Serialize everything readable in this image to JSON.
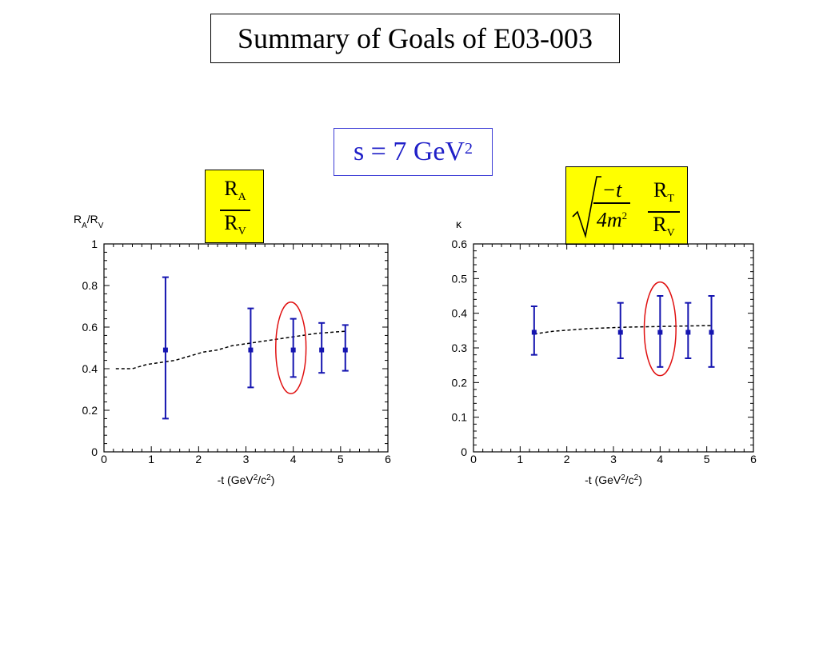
{
  "title": "Summary of Goals of E03-003",
  "kinematics": {
    "label": "s = 7 GeV",
    "exponent": "2"
  },
  "left_box": {
    "num": "R",
    "num_sub": "A",
    "den": "R",
    "den_sub": "V"
  },
  "right_box": {
    "sqrt_num": "−t",
    "sqrt_den": "4m",
    "sqrt_den_exp": "2",
    "num": "R",
    "num_sub": "T",
    "den": "R",
    "den_sub": "V"
  },
  "colors": {
    "points": "#1515b0",
    "curve": "#000000",
    "highlight": "#e01010",
    "box": "#ffff00",
    "s_text": "#2020c8"
  },
  "chart_data": [
    {
      "type": "scatter",
      "ylabel": "R_A/R_V",
      "xlabel": "-t (GeV^2/c^2)",
      "xlim": [
        0,
        6
      ],
      "ylim": [
        0,
        1
      ],
      "xticks": [
        "0",
        "1",
        "2",
        "3",
        "4",
        "5",
        "6"
      ],
      "yticks": [
        "0",
        "0.2",
        "0.4",
        "0.6",
        "0.8",
        "1"
      ],
      "points": [
        {
          "x": 1.3,
          "y": 0.49,
          "err_lo": 0.16,
          "err_hi": 0.84
        },
        {
          "x": 3.1,
          "y": 0.49,
          "err_lo": 0.31,
          "err_hi": 0.69
        },
        {
          "x": 4.0,
          "y": 0.49,
          "err_lo": 0.36,
          "err_hi": 0.64
        },
        {
          "x": 4.6,
          "y": 0.49,
          "err_lo": 0.38,
          "err_hi": 0.62
        },
        {
          "x": 5.1,
          "y": 0.49,
          "err_lo": 0.39,
          "err_hi": 0.61
        }
      ],
      "curve": {
        "x": [
          0.25,
          0.6,
          0.9,
          1.2,
          1.5,
          1.8,
          2.1,
          2.4,
          2.7,
          3.0,
          3.3,
          3.6,
          3.9,
          4.2,
          4.5,
          4.8,
          5.1
        ],
        "y": [
          0.4,
          0.4,
          0.42,
          0.43,
          0.44,
          0.46,
          0.48,
          0.49,
          0.51,
          0.52,
          0.53,
          0.54,
          0.55,
          0.56,
          0.57,
          0.575,
          0.58
        ]
      },
      "highlight": {
        "x": 3.95,
        "y": 0.5,
        "rx": 0.32,
        "ry": 0.22
      }
    },
    {
      "type": "scatter",
      "ylabel": "κ",
      "xlabel": "-t (GeV^2/c^2)",
      "xlim": [
        0,
        6
      ],
      "ylim": [
        0,
        0.6
      ],
      "xticks": [
        "0",
        "1",
        "2",
        "3",
        "4",
        "5",
        "6"
      ],
      "yticks": [
        "0",
        "0.1",
        "0.2",
        "0.3",
        "0.4",
        "0.5",
        "0.6"
      ],
      "points": [
        {
          "x": 1.3,
          "y": 0.345,
          "err_lo": 0.28,
          "err_hi": 0.42
        },
        {
          "x": 3.15,
          "y": 0.345,
          "err_lo": 0.27,
          "err_hi": 0.43
        },
        {
          "x": 4.0,
          "y": 0.345,
          "err_lo": 0.245,
          "err_hi": 0.45
        },
        {
          "x": 4.6,
          "y": 0.345,
          "err_lo": 0.27,
          "err_hi": 0.43
        },
        {
          "x": 5.1,
          "y": 0.345,
          "err_lo": 0.245,
          "err_hi": 0.45
        }
      ],
      "curve": {
        "x": [
          1.3,
          1.7,
          2.1,
          2.5,
          2.9,
          3.3,
          3.7,
          4.1,
          4.5,
          4.9,
          5.1
        ],
        "y": [
          0.34,
          0.348,
          0.352,
          0.356,
          0.358,
          0.36,
          0.361,
          0.362,
          0.363,
          0.364,
          0.364
        ]
      },
      "highlight": {
        "x": 4.0,
        "y": 0.355,
        "rx": 0.34,
        "ry": 0.135
      }
    }
  ]
}
